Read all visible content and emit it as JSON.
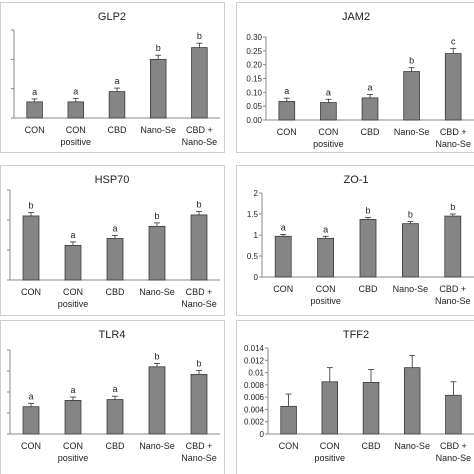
{
  "chart_data": [
    {
      "type": "bar",
      "title": "GLP2",
      "categories": [
        "CON",
        "CON positive",
        "CBD",
        "Nano-Se",
        "CBD + Nano-Se"
      ],
      "values": [
        0.55,
        0.55,
        0.9,
        2.0,
        2.4
      ],
      "error": [
        0.1,
        0.12,
        0.12,
        0.14,
        0.15
      ],
      "significance": [
        "a",
        "a",
        "a",
        "b",
        "b"
      ],
      "ylim": [
        0,
        3
      ],
      "yticks": [],
      "show_ytick_labels": false
    },
    {
      "type": "bar",
      "title": "JAM2",
      "categories": [
        "CON",
        "CON positive",
        "CBD",
        "Nano-Se",
        "CBD + Nano-Se"
      ],
      "values": [
        0.067,
        0.063,
        0.08,
        0.175,
        0.24
      ],
      "error": [
        0.012,
        0.012,
        0.012,
        0.014,
        0.018
      ],
      "significance": [
        "a",
        "a",
        "a",
        "b",
        "c"
      ],
      "ylim": [
        0,
        0.3
      ],
      "yticks": [
        "0.00",
        "0.05",
        "0.10",
        "0.15",
        "0.20",
        "0.25",
        "0.30"
      ],
      "show_ytick_labels": true
    },
    {
      "type": "bar",
      "title": "HSP70",
      "categories": [
        "CON",
        "CON positive",
        "CBD",
        "Nano-Se",
        "CBD + Nano-Se"
      ],
      "values": [
        1.85,
        1.0,
        1.2,
        1.55,
        1.88
      ],
      "error": [
        0.1,
        0.1,
        0.09,
        0.1,
        0.1
      ],
      "significance": [
        "b",
        "a",
        "a",
        "b",
        "b"
      ],
      "ylim": [
        0,
        2.6
      ],
      "yticks": [],
      "show_ytick_labels": false
    },
    {
      "type": "bar",
      "title": "ZO-1",
      "categories": [
        "CON",
        "CON positive",
        "CBD",
        "Nano-Se",
        "CBD + Nano-Se"
      ],
      "values": [
        0.97,
        0.92,
        1.37,
        1.27,
        1.45
      ],
      "error": [
        0.04,
        0.05,
        0.05,
        0.05,
        0.05
      ],
      "significance": [
        "a",
        "a",
        "b",
        "b",
        "b"
      ],
      "ylim": [
        0,
        2
      ],
      "yticks": [
        "0",
        "0.5",
        "1",
        "1.5",
        "2"
      ],
      "show_ytick_labels": true
    },
    {
      "type": "bar",
      "title": "TLR4",
      "categories": [
        "CON",
        "CON positive",
        "CBD",
        "Nano-Se",
        "CBD + Nano-Se"
      ],
      "values": [
        0.65,
        0.8,
        0.82,
        1.6,
        1.42
      ],
      "error": [
        0.08,
        0.08,
        0.08,
        0.08,
        0.09
      ],
      "significance": [
        "a",
        "a",
        "a",
        "b",
        "b"
      ],
      "ylim": [
        0,
        2
      ],
      "yticks": [
        "",
        "",
        "",
        "",
        ""
      ],
      "show_ytick_labels": false
    },
    {
      "type": "bar",
      "title": "TFF2",
      "categories": [
        "CON",
        "CON positive",
        "CBD",
        "Nano-Se",
        "CBD + Nano-Se"
      ],
      "values": [
        0.0045,
        0.0085,
        0.0084,
        0.0108,
        0.0063
      ],
      "error": [
        0.002,
        0.0023,
        0.0021,
        0.002,
        0.0022
      ],
      "significance": [
        "",
        "",
        "",
        "",
        ""
      ],
      "ylim": [
        0,
        0.014
      ],
      "yticks": [
        "0",
        "0.002",
        "0.004",
        "0.006",
        "0.008",
        "0.01",
        "0.012",
        "0.014"
      ],
      "show_ytick_labels": true
    }
  ]
}
